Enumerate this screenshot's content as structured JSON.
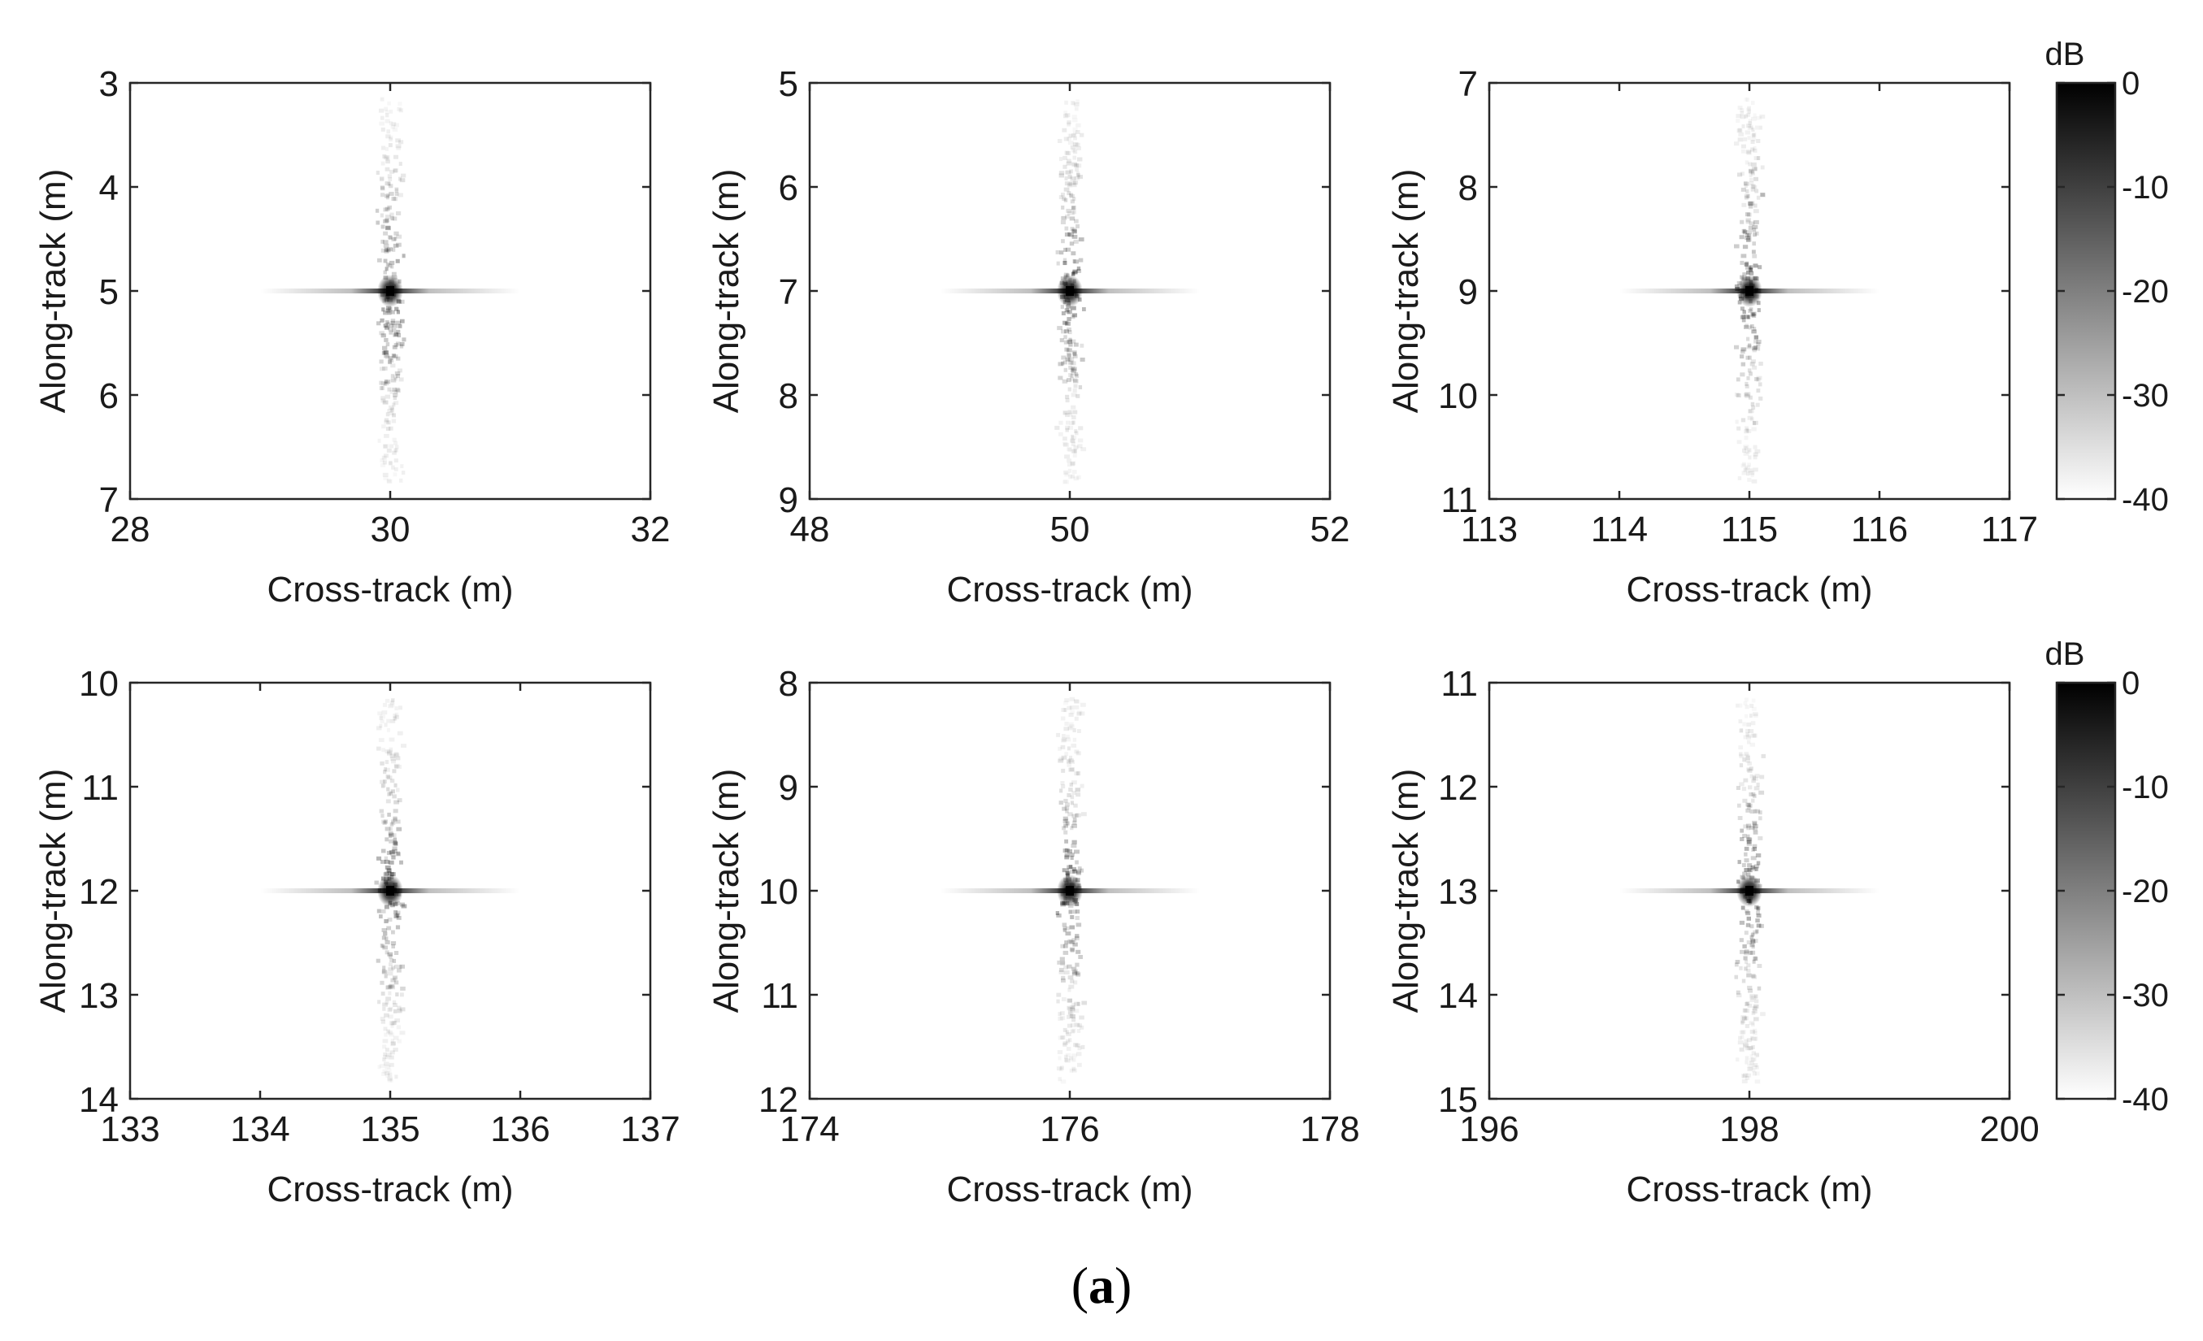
{
  "figure": {
    "caption_open": "(",
    "caption_letter": "a",
    "caption_close": ")"
  },
  "chart_data": [
    {
      "type": "heatmap",
      "title": "",
      "xlabel": "Cross-track (m)",
      "ylabel": "Along-track (m)",
      "xlim": [
        28,
        32
      ],
      "ylim": [
        7,
        3
      ],
      "xticks": [
        "28",
        "30",
        "32"
      ],
      "yticks": [
        "3",
        "4",
        "5",
        "6",
        "7"
      ],
      "peak": {
        "x": 30,
        "y": 5,
        "value_db": 0
      },
      "color_range_db": [
        -40,
        0
      ]
    },
    {
      "type": "heatmap",
      "title": "",
      "xlabel": "Cross-track (m)",
      "ylabel": "Along-track (m)",
      "xlim": [
        48,
        52
      ],
      "ylim": [
        9,
        5
      ],
      "xticks": [
        "48",
        "50",
        "52"
      ],
      "yticks": [
        "5",
        "6",
        "7",
        "8",
        "9"
      ],
      "peak": {
        "x": 50,
        "y": 7,
        "value_db": 0
      },
      "color_range_db": [
        -40,
        0
      ]
    },
    {
      "type": "heatmap",
      "title": "",
      "xlabel": "Cross-track (m)",
      "ylabel": "Along-track (m)",
      "xlim": [
        113,
        117
      ],
      "ylim": [
        11,
        7
      ],
      "xticks": [
        "113",
        "114",
        "115",
        "116",
        "117"
      ],
      "yticks": [
        "7",
        "8",
        "9",
        "10",
        "11"
      ],
      "peak": {
        "x": 115,
        "y": 9,
        "value_db": 0
      },
      "color_range_db": [
        -40,
        0
      ]
    },
    {
      "type": "heatmap",
      "title": "",
      "xlabel": "Cross-track (m)",
      "ylabel": "Along-track (m)",
      "xlim": [
        133,
        137
      ],
      "ylim": [
        14,
        10
      ],
      "xticks": [
        "133",
        "134",
        "135",
        "136",
        "137"
      ],
      "yticks": [
        "10",
        "11",
        "12",
        "13",
        "14"
      ],
      "peak": {
        "x": 135,
        "y": 12,
        "value_db": 0
      },
      "color_range_db": [
        -40,
        0
      ]
    },
    {
      "type": "heatmap",
      "title": "",
      "xlabel": "Cross-track (m)",
      "ylabel": "Along-track (m)",
      "xlim": [
        174,
        178
      ],
      "ylim": [
        12,
        8
      ],
      "xticks": [
        "174",
        "176",
        "178"
      ],
      "yticks": [
        "8",
        "9",
        "10",
        "11",
        "12"
      ],
      "peak": {
        "x": 176,
        "y": 10,
        "value_db": 0
      },
      "color_range_db": [
        -40,
        0
      ]
    },
    {
      "type": "heatmap",
      "title": "",
      "xlabel": "Cross-track (m)",
      "ylabel": "Along-track (m)",
      "xlim": [
        196,
        200
      ],
      "ylim": [
        15,
        11
      ],
      "xticks": [
        "196",
        "198",
        "200"
      ],
      "yticks": [
        "11",
        "12",
        "13",
        "14",
        "15"
      ],
      "peak": {
        "x": 198,
        "y": 13,
        "value_db": 0
      },
      "color_range_db": [
        -40,
        0
      ]
    }
  ],
  "colorbars": [
    {
      "title": "dB",
      "ticks": [
        "0",
        "-10",
        "-20",
        "-30",
        "-40"
      ],
      "range": [
        -40,
        0
      ]
    },
    {
      "title": "dB",
      "ticks": [
        "0",
        "-10",
        "-20",
        "-30",
        "-40"
      ],
      "range": [
        -40,
        0
      ]
    }
  ]
}
